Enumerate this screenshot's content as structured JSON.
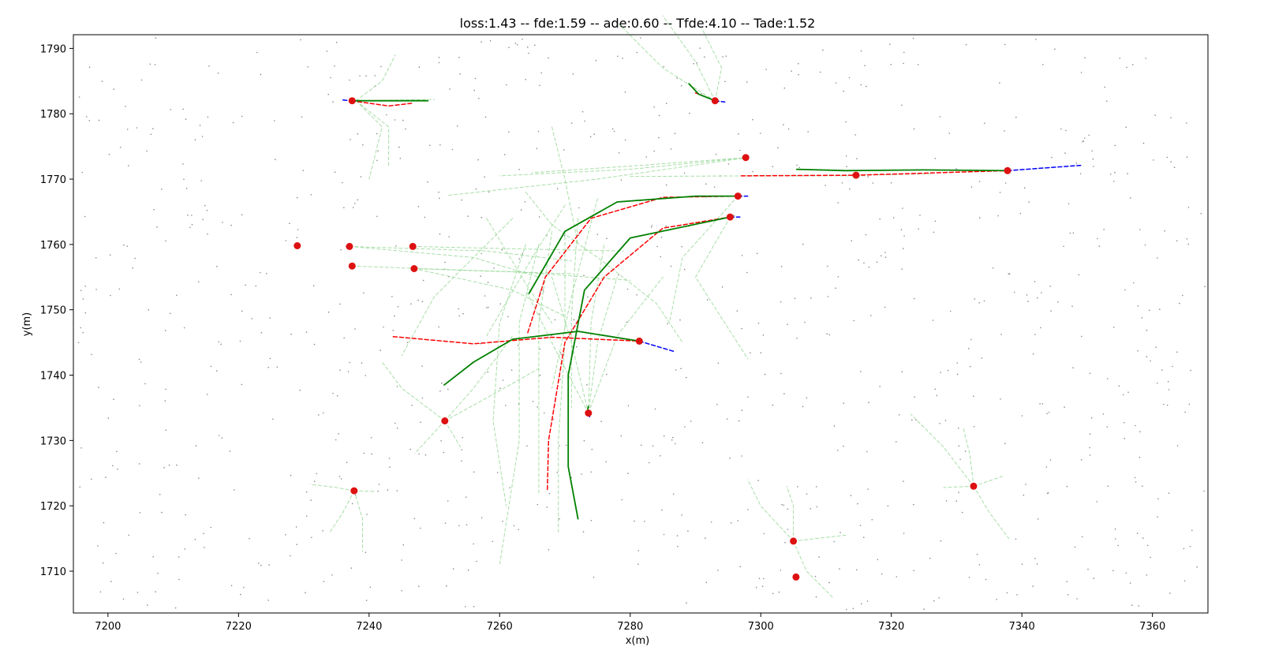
{
  "chart_data": {
    "type": "line",
    "title": "loss:1.43 -- fde:1.59 -- ade:0.60 -- Tfde:4.10 -- Tade:1.52",
    "xlabel": "x(m)",
    "ylabel": "y(m)",
    "xlim": [
      7194.7,
      7368.5
    ],
    "ylim": [
      1703.6,
      1792.1
    ],
    "grid": false,
    "xticks": [
      7200,
      7220,
      7240,
      7260,
      7280,
      7300,
      7320,
      7340,
      7360
    ],
    "yticks": [
      1710,
      1720,
      1730,
      1740,
      1750,
      1760,
      1770,
      1780,
      1790
    ],
    "colors": {
      "ground_truth": "#008000",
      "prediction": "#ff0000",
      "history": "#0000ff",
      "candidates": "#98d898",
      "agent": "#dd1111",
      "map_points": "#888888"
    },
    "ground_truth": [
      [
        [
          7237.3,
          1782.0
        ],
        [
          7244,
          1782.0
        ],
        [
          7249,
          1782.0
        ]
      ],
      [
        [
          7289,
          1784.6
        ],
        [
          7290.5,
          1783
        ],
        [
          7293,
          1782.0
        ]
      ],
      [
        [
          7305.5,
          1771.5
        ],
        [
          7313,
          1771.3
        ],
        [
          7325,
          1771.4
        ],
        [
          7337.8,
          1771.3
        ]
      ],
      [
        [
          7264.5,
          1752.5
        ],
        [
          7270,
          1762
        ],
        [
          7278,
          1766.5
        ],
        [
          7290,
          1767.4
        ],
        [
          7296.5,
          1767.4
        ]
      ],
      [
        [
          7272,
          1718
        ],
        [
          7270.5,
          1726
        ],
        [
          7270.5,
          1740
        ],
        [
          7273,
          1753
        ],
        [
          7280,
          1761
        ],
        [
          7295.3,
          1764.2
        ]
      ],
      [
        [
          7251.5,
          1738.5
        ],
        [
          7256,
          1742
        ],
        [
          7262,
          1745.5
        ],
        [
          7272,
          1746.7
        ],
        [
          7281.4,
          1745.2
        ]
      ],
      [
        [
          7273.5,
          1734.8
        ],
        [
          7273.6,
          1735.2
        ]
      ]
    ],
    "predictions": [
      [
        [
          7237.3,
          1782.0
        ],
        [
          7243,
          1781.2
        ],
        [
          7246.5,
          1781.6
        ]
      ],
      [
        [
          7290,
          1783.2
        ],
        [
          7293,
          1782.0
        ]
      ],
      [
        [
          7297,
          1770.5
        ],
        [
          7314.6,
          1770.6
        ],
        [
          7337.8,
          1771.3
        ]
      ],
      [
        [
          7264.3,
          1746.5
        ],
        [
          7267,
          1755
        ],
        [
          7274,
          1764
        ],
        [
          7285,
          1767.2
        ],
        [
          7296.5,
          1767.4
        ]
      ],
      [
        [
          7267.3,
          1722.5
        ],
        [
          7267.5,
          1730
        ],
        [
          7270,
          1745
        ],
        [
          7276,
          1755
        ],
        [
          7285,
          1762.5
        ],
        [
          7295.3,
          1764.2
        ]
      ],
      [
        [
          7243.7,
          1745.9
        ],
        [
          7256,
          1744.8
        ],
        [
          7268,
          1745.8
        ],
        [
          7281.4,
          1745.2
        ]
      ]
    ],
    "history": [
      [
        [
          7236,
          1782.1
        ],
        [
          7237.3,
          1782.0
        ]
      ],
      [
        [
          7293,
          1782.0
        ],
        [
          7294.5,
          1781.8
        ]
      ],
      [
        [
          7337.8,
          1771.3
        ],
        [
          7349,
          1772.1
        ]
      ],
      [
        [
          7296.5,
          1767.4
        ],
        [
          7298,
          1767.4
        ]
      ],
      [
        [
          7295.3,
          1764.2
        ],
        [
          7296.8,
          1764.2
        ]
      ],
      [
        [
          7281.4,
          1745.2
        ],
        [
          7286.8,
          1743.6
        ]
      ],
      [
        [
          7273.6,
          1734.2
        ],
        [
          7273.8,
          1733.6
        ]
      ]
    ],
    "candidates": [
      [
        [
          7238,
          1782
        ],
        [
          7242,
          1785
        ],
        [
          7244,
          1789
        ]
      ],
      [
        [
          7238,
          1782
        ],
        [
          7242,
          1778
        ],
        [
          7240,
          1770
        ]
      ],
      [
        [
          7238,
          1782
        ],
        [
          7243,
          1778
        ],
        [
          7243,
          1772
        ]
      ],
      [
        [
          7238,
          1782
        ],
        [
          7250,
          1782.2
        ]
      ],
      [
        [
          7293,
          1782
        ],
        [
          7285,
          1787
        ],
        [
          7278,
          1794
        ]
      ],
      [
        [
          7293,
          1782
        ],
        [
          7290,
          1788
        ],
        [
          7285,
          1795
        ]
      ],
      [
        [
          7293,
          1782
        ],
        [
          7294,
          1787
        ],
        [
          7291,
          1793
        ]
      ],
      [
        [
          7298,
          1773.3
        ],
        [
          7280,
          1772
        ],
        [
          7265,
          1771
        ]
      ],
      [
        [
          7298,
          1773.3
        ],
        [
          7275,
          1770
        ],
        [
          7252,
          1767.5
        ]
      ],
      [
        [
          7298,
          1773.3
        ],
        [
          7280,
          1771.5
        ],
        [
          7260,
          1770.5
        ]
      ],
      [
        [
          7316,
          1770.5
        ],
        [
          7298,
          1770.5
        ],
        [
          7280,
          1770.4
        ]
      ],
      [
        [
          7314.6,
          1770.6
        ],
        [
          7326,
          1770.8
        ]
      ],
      [
        [
          7237,
          1759.7
        ],
        [
          7258,
          1759
        ],
        [
          7271,
          1757.5
        ]
      ],
      [
        [
          7237,
          1759.7
        ],
        [
          7256,
          1758
        ],
        [
          7266,
          1755
        ]
      ],
      [
        [
          7237.4,
          1756.7
        ],
        [
          7256,
          1756
        ],
        [
          7271,
          1755.5
        ]
      ],
      [
        [
          7246.7,
          1759.7
        ],
        [
          7264,
          1759.3
        ],
        [
          7279,
          1759
        ]
      ],
      [
        [
          7246.9,
          1756.3
        ],
        [
          7263,
          1755.8
        ],
        [
          7280,
          1754.5
        ]
      ],
      [
        [
          7246.9,
          1756.3
        ],
        [
          7262,
          1753
        ],
        [
          7270,
          1749
        ]
      ],
      [
        [
          7251.6,
          1733
        ],
        [
          7245,
          1738
        ],
        [
          7242,
          1742
        ]
      ],
      [
        [
          7251.6,
          1733
        ],
        [
          7256,
          1738
        ],
        [
          7262,
          1746
        ]
      ],
      [
        [
          7251.6,
          1733
        ],
        [
          7247,
          1728
        ]
      ],
      [
        [
          7251.6,
          1733
        ],
        [
          7254,
          1729
        ]
      ],
      [
        [
          7251.6,
          1733
        ],
        [
          7258,
          1736.5
        ],
        [
          7266,
          1741
        ]
      ],
      [
        [
          7273.6,
          1734.2
        ],
        [
          7269,
          1743
        ],
        [
          7264,
          1753
        ]
      ],
      [
        [
          7273.6,
          1734.2
        ],
        [
          7271,
          1745
        ],
        [
          7268,
          1755
        ]
      ],
      [
        [
          7273.6,
          1734.2
        ],
        [
          7275,
          1745
        ],
        [
          7278,
          1755
        ]
      ],
      [
        [
          7273.6,
          1734.2
        ],
        [
          7278,
          1746
        ],
        [
          7285,
          1755
        ]
      ],
      [
        [
          7273.6,
          1734.2
        ],
        [
          7274,
          1748
        ],
        [
          7276,
          1760
        ]
      ],
      [
        [
          7295.3,
          1764.2
        ],
        [
          7290,
          1755
        ],
        [
          7298,
          1742.5
        ]
      ],
      [
        [
          7296.5,
          1767.4
        ],
        [
          7288,
          1758
        ],
        [
          7286,
          1748
        ]
      ],
      [
        [
          7264,
          1760
        ],
        [
          7260,
          1748
        ],
        [
          7259,
          1733
        ],
        [
          7261,
          1720
        ]
      ],
      [
        [
          7266,
          1760
        ],
        [
          7263,
          1748
        ],
        [
          7263,
          1730
        ],
        [
          7260,
          1711
        ]
      ],
      [
        [
          7268,
          1762
        ],
        [
          7266,
          1748
        ],
        [
          7266,
          1735
        ],
        [
          7266,
          1722
        ]
      ],
      [
        [
          7270,
          1762
        ],
        [
          7270,
          1745
        ],
        [
          7269,
          1730
        ],
        [
          7269,
          1716
        ]
      ],
      [
        [
          7272,
          1764
        ],
        [
          7271,
          1749
        ],
        [
          7271,
          1735
        ]
      ],
      [
        [
          7275,
          1767
        ],
        [
          7271,
          1752
        ],
        [
          7268,
          1738
        ]
      ],
      [
        [
          7262,
          1764
        ],
        [
          7250,
          1752
        ],
        [
          7245,
          1743
        ]
      ],
      [
        [
          7264,
          1768
        ],
        [
          7268,
          1763
        ],
        [
          7275,
          1758
        ],
        [
          7284,
          1751
        ],
        [
          7288,
          1745
        ]
      ],
      [
        [
          7258,
          1764
        ],
        [
          7264,
          1754
        ],
        [
          7268,
          1748
        ]
      ],
      [
        [
          7270,
          1766
        ],
        [
          7265,
          1758
        ],
        [
          7258,
          1746
        ]
      ],
      [
        [
          7268,
          1778
        ],
        [
          7270,
          1770
        ],
        [
          7272,
          1760
        ]
      ],
      [
        [
          7237.7,
          1722.3
        ],
        [
          7235,
          1722.8
        ],
        [
          7231,
          1723.3
        ]
      ],
      [
        [
          7237.7,
          1722.3
        ],
        [
          7236,
          1719
        ],
        [
          7234,
          1716
        ]
      ],
      [
        [
          7237.7,
          1722.3
        ],
        [
          7239,
          1718
        ],
        [
          7239,
          1713
        ]
      ],
      [
        [
          7237.7,
          1722.3
        ],
        [
          7241,
          1722.2
        ]
      ],
      [
        [
          7305,
          1714.6
        ],
        [
          7300,
          1720
        ],
        [
          7298,
          1724
        ]
      ],
      [
        [
          7305,
          1714.6
        ],
        [
          7307,
          1710
        ],
        [
          7311,
          1706
        ]
      ],
      [
        [
          7305,
          1714.6
        ],
        [
          7305,
          1720
        ],
        [
          7304,
          1723
        ]
      ],
      [
        [
          7305,
          1714.6
        ],
        [
          7313,
          1715.5
        ]
      ],
      [
        [
          7332.6,
          1723
        ],
        [
          7328,
          1729
        ],
        [
          7323,
          1734
        ]
      ],
      [
        [
          7332.6,
          1723
        ],
        [
          7332,
          1728
        ],
        [
          7331,
          1732
        ]
      ],
      [
        [
          7332.6,
          1723
        ],
        [
          7335,
          1719
        ],
        [
          7338,
          1715
        ]
      ],
      [
        [
          7332.6,
          1723
        ],
        [
          7337,
          1724.5
        ]
      ],
      [
        [
          7332.6,
          1723
        ],
        [
          7328,
          1722.8
        ]
      ]
    ],
    "agents": [
      [
        7237.4,
        1782.0
      ],
      [
        7293.0,
        1782.0
      ],
      [
        7297.7,
        1773.3
      ],
      [
        7337.8,
        1771.3
      ],
      [
        7314.6,
        1770.6
      ],
      [
        7296.5,
        1767.4
      ],
      [
        7295.3,
        1764.2
      ],
      [
        7229.0,
        1759.8
      ],
      [
        7237.0,
        1759.7
      ],
      [
        7246.7,
        1759.7
      ],
      [
        7237.4,
        1756.7
      ],
      [
        7246.9,
        1756.3
      ],
      [
        7281.4,
        1745.2
      ],
      [
        7273.6,
        1734.2
      ],
      [
        7251.6,
        1733.0
      ],
      [
        7237.7,
        1722.3
      ],
      [
        7332.6,
        1723.0
      ],
      [
        7305.0,
        1714.6
      ],
      [
        7305.4,
        1709.1
      ]
    ]
  }
}
